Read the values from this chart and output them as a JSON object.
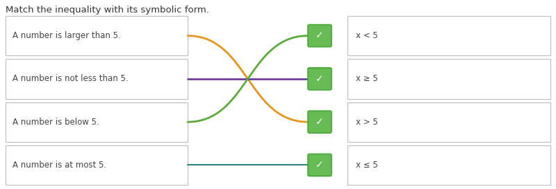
{
  "title": "Match the inequality with its symbolic form.",
  "left_labels": [
    "A number is larger than 5.",
    "A number is not less than 5.",
    "A number is below 5.",
    "A number is at most 5."
  ],
  "right_labels": [
    "x < 5",
    "x ≥ 5",
    "x > 5",
    "x ≤ 5"
  ],
  "line_colors": [
    "#e8941a",
    "#6b3fa0",
    "#5aaa3a",
    "#2e8080"
  ],
  "line_targets": [
    2,
    1,
    0,
    3
  ],
  "box_bg": "#ffffff",
  "box_border": "#bbbbbb",
  "check_bg": "#66bb55",
  "check_border": "#44aa33",
  "background": "#ffffff",
  "title_color": "#333333",
  "label_color": "#444444",
  "title_fontsize": 9.5,
  "label_fontsize": 8.5
}
